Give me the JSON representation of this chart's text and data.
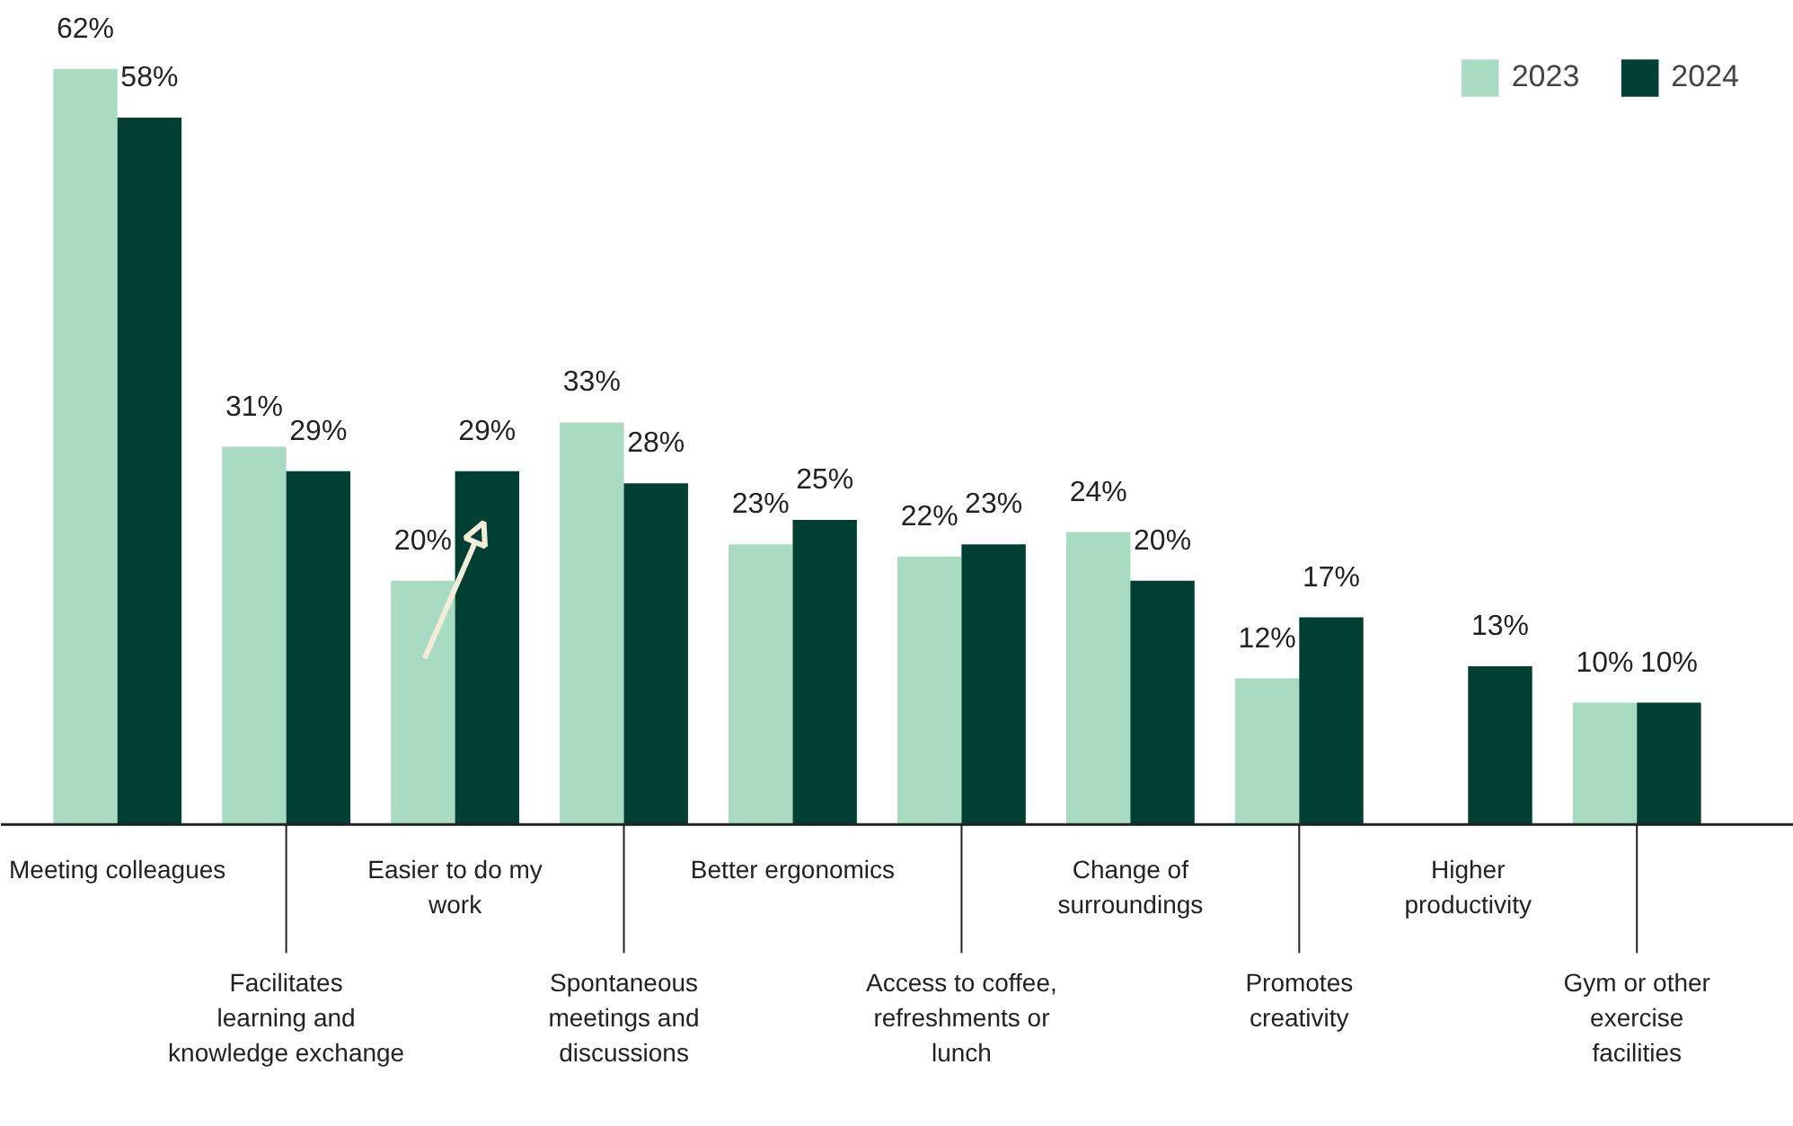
{
  "chart_data": {
    "type": "bar",
    "categories": [
      "Meeting colleagues",
      "Facilitates learning and knowledge exchange",
      "Easier to do my work",
      "Spontaneous meetings and discussions",
      "Better ergonomics",
      "Access to coffee, refreshments or lunch",
      "Change of surroundings",
      "Promotes creativity",
      "Higher productivity",
      "Gym or other exercise facilities"
    ],
    "series": [
      {
        "name": "2023",
        "color": "#a8dbc2",
        "values": [
          62,
          31,
          20,
          33,
          23,
          22,
          24,
          12,
          null,
          10
        ],
        "value_labels": [
          "62%",
          "31%",
          "20%",
          "33%",
          "23%",
          "22%",
          "24%",
          "12%",
          null,
          "10%"
        ]
      },
      {
        "name": "2024",
        "color": "#003f32",
        "values": [
          58,
          29,
          29,
          28,
          25,
          23,
          20,
          17,
          13,
          10
        ],
        "value_labels": [
          "58%",
          "29%",
          "29%",
          "28%",
          "25%",
          "23%",
          "20%",
          "17%",
          "13%",
          "10%"
        ]
      }
    ],
    "legend": "top right",
    "grid": false
  }
}
